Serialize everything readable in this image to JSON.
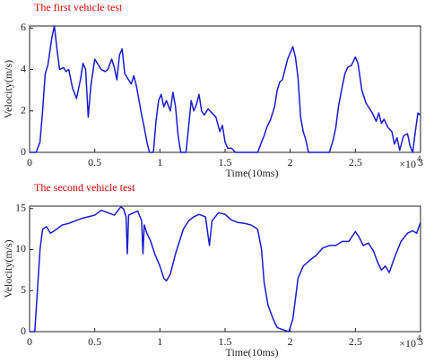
{
  "chart_data": [
    {
      "type": "line",
      "title": "The first vehicle test",
      "xlabel": "Time(10ms)",
      "ylabel": "Velocity(m/s)",
      "x_multiplier": "×10",
      "x_multiplier_exponent": "4",
      "color": "#1a1acd",
      "xlim": [
        0,
        3
      ],
      "xticks": [
        0,
        0.5,
        1,
        1.5,
        2,
        2.5,
        3
      ],
      "ylim": [
        0,
        6.1
      ],
      "yticks": [
        0,
        2,
        4,
        6
      ],
      "x": [
        0,
        0.05,
        0.08,
        0.1,
        0.12,
        0.14,
        0.17,
        0.19,
        0.21,
        0.23,
        0.26,
        0.28,
        0.3,
        0.33,
        0.36,
        0.39,
        0.41,
        0.43,
        0.45,
        0.47,
        0.5,
        0.52,
        0.55,
        0.58,
        0.6,
        0.63,
        0.65,
        0.67,
        0.69,
        0.71,
        0.73,
        0.76,
        0.78,
        0.8,
        0.82,
        0.84,
        0.86,
        0.88,
        0.9,
        0.92,
        0.95,
        0.97,
        0.99,
        1.01,
        1.03,
        1.05,
        1.08,
        1.1,
        1.12,
        1.14,
        1.16,
        1.2,
        1.22,
        1.24,
        1.26,
        1.28,
        1.3,
        1.32,
        1.34,
        1.37,
        1.4,
        1.43,
        1.46,
        1.48,
        1.5,
        1.52,
        1.55,
        1.58,
        1.75,
        1.78,
        1.8,
        1.82,
        1.85,
        1.88,
        1.9,
        1.92,
        1.94,
        1.96,
        1.98,
        2.0,
        2.02,
        2.04,
        2.06,
        2.08,
        2.1,
        2.12,
        2.14,
        2.3,
        2.33,
        2.35,
        2.37,
        2.4,
        2.42,
        2.44,
        2.47,
        2.5,
        2.52,
        2.55,
        2.58,
        2.6,
        2.63,
        2.66,
        2.68,
        2.7,
        2.72,
        2.75,
        2.78,
        2.8,
        2.82,
        2.84,
        2.87,
        2.9,
        2.92,
        2.94,
        2.96,
        2.98,
        3.0
      ],
      "values": [
        0,
        0,
        0.5,
        2,
        3.8,
        4.2,
        5.5,
        6.1,
        5.0,
        4.0,
        4.1,
        3.9,
        4.0,
        3.1,
        2.6,
        3.5,
        4.3,
        4.0,
        1.7,
        3.2,
        4.5,
        4.3,
        4.0,
        3.9,
        4.0,
        4.5,
        4.1,
        3.5,
        4.7,
        5.0,
        3.8,
        3.5,
        3.3,
        3.7,
        3.2,
        2.5,
        1.8,
        1.2,
        0.5,
        0,
        0,
        1.5,
        2.5,
        2.8,
        2.2,
        2.5,
        2.0,
        2.9,
        2.2,
        0.8,
        0,
        0,
        1.2,
        2.5,
        2.0,
        2.3,
        2.8,
        2.0,
        1.8,
        2.1,
        1.9,
        1.7,
        1.0,
        1.3,
        0.5,
        0.2,
        0.2,
        0,
        0,
        0.5,
        0.8,
        1.2,
        1.6,
        2.2,
        3.0,
        3.4,
        3.5,
        4.0,
        4.5,
        4.8,
        5.1,
        4.6,
        3.6,
        1.7,
        1.0,
        0.6,
        0,
        0,
        0.6,
        1.2,
        2.2,
        3.2,
        3.8,
        4.1,
        4.2,
        4.6,
        4.3,
        3.0,
        2.4,
        2.2,
        1.9,
        1.5,
        1.9,
        1.4,
        1.6,
        1.2,
        1.0,
        0.4,
        0.7,
        0.1,
        0.8,
        0.9,
        0.3,
        0,
        1.0,
        1.9,
        1.8
      ]
    },
    {
      "type": "line",
      "title": "The second vehicle test",
      "xlabel": "Time(10ms)",
      "ylabel": "Velocity(m/s)",
      "x_multiplier": "×10",
      "x_multiplier_exponent": "4",
      "color": "#1a1acd",
      "xlim": [
        0,
        3
      ],
      "xticks": [
        0,
        0.5,
        1,
        1.5,
        2,
        2.5,
        3
      ],
      "ylim": [
        0,
        15.3
      ],
      "yticks": [
        0,
        5,
        10,
        15
      ],
      "x": [
        0,
        0.04,
        0.06,
        0.08,
        0.1,
        0.13,
        0.16,
        0.2,
        0.25,
        0.3,
        0.35,
        0.4,
        0.45,
        0.5,
        0.55,
        0.6,
        0.65,
        0.7,
        0.72,
        0.74,
        0.75,
        0.76,
        0.8,
        0.83,
        0.86,
        0.87,
        0.88,
        0.9,
        0.93,
        0.96,
        1.0,
        1.03,
        1.05,
        1.08,
        1.12,
        1.15,
        1.18,
        1.22,
        1.26,
        1.3,
        1.35,
        1.38,
        1.4,
        1.45,
        1.5,
        1.55,
        1.6,
        1.65,
        1.7,
        1.75,
        1.78,
        1.8,
        1.83,
        1.87,
        1.9,
        1.95,
        1.99,
        2.02,
        2.04,
        2.06,
        2.1,
        2.15,
        2.2,
        2.25,
        2.3,
        2.35,
        2.4,
        2.45,
        2.5,
        2.53,
        2.56,
        2.6,
        2.64,
        2.67,
        2.7,
        2.73,
        2.76,
        2.8,
        2.85,
        2.9,
        2.94,
        2.97,
        3.0
      ],
      "values": [
        0,
        0,
        5,
        10,
        12.5,
        12.8,
        12.0,
        12.4,
        13,
        13.2,
        13.5,
        13.8,
        14,
        14.2,
        14.8,
        14.5,
        14.2,
        15.2,
        15,
        14.0,
        9.5,
        14.2,
        14.5,
        14.7,
        13.5,
        9.5,
        13,
        12,
        11,
        9.5,
        8,
        6.5,
        6.2,
        7,
        9.5,
        11,
        12.5,
        13.5,
        14,
        14.3,
        14.0,
        10.5,
        13.5,
        14.5,
        14.3,
        13.6,
        13.3,
        13.2,
        13.0,
        12.5,
        10,
        6,
        3.2,
        1.5,
        0.5,
        0.2,
        0,
        1.5,
        4,
        6.5,
        8,
        8.7,
        9.3,
        10.2,
        10.5,
        10.5,
        11.0,
        11.0,
        12.2,
        11.5,
        10.5,
        10.8,
        9.8,
        8.5,
        7.5,
        8.0,
        7.2,
        9.0,
        11.0,
        12.0,
        12.3,
        12.0,
        13.3
      ]
    }
  ]
}
